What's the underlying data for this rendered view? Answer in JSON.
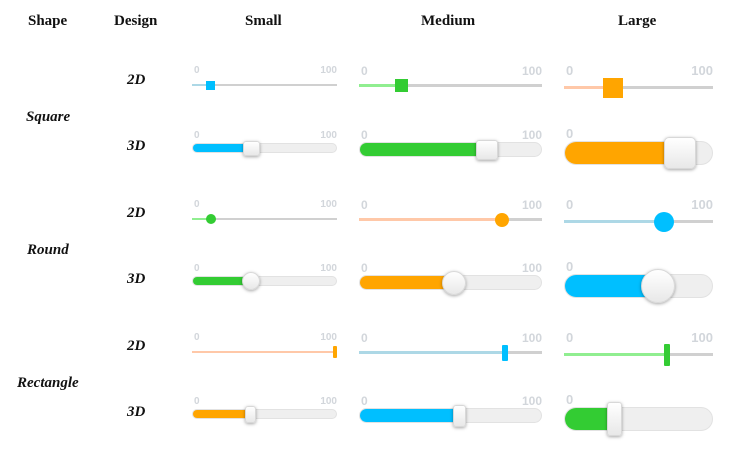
{
  "headers": {
    "shape": "Shape",
    "design": "Design",
    "small": "Small",
    "medium": "Medium",
    "large": "Large"
  },
  "shapes": {
    "square": "Square",
    "round": "Round",
    "rectangle": "Rectangle"
  },
  "designs": {
    "d2": "2D",
    "d3": "3D"
  },
  "range": {
    "min": "0",
    "max": "100"
  },
  "colors": {
    "blue": "#00bfff",
    "green": "#33cc33",
    "orange": "#ffa500",
    "light_green": "#90ee90",
    "peach": "#ffc8a8",
    "light_blue": "#add8e6"
  },
  "sliders": [
    {
      "id": "square-2d-small",
      "shape": "square",
      "design": "2D",
      "size": "small",
      "value": 13,
      "fill": "#add8e6",
      "thumb": "#00bfff"
    },
    {
      "id": "square-2d-medium",
      "shape": "square",
      "design": "2D",
      "size": "medium",
      "value": 23,
      "fill": "#90ee90",
      "thumb": "#33cc33"
    },
    {
      "id": "square-2d-large",
      "shape": "square",
      "design": "2D",
      "size": "large",
      "value": 33,
      "fill": "#ffc8a8",
      "thumb": "#ffa500"
    },
    {
      "id": "square-3d-small",
      "shape": "square",
      "design": "3D",
      "size": "small",
      "value": 41,
      "fill": "#00bfff"
    },
    {
      "id": "square-3d-medium",
      "shape": "square",
      "design": "3D",
      "size": "medium",
      "value": 70,
      "fill": "#33cc33"
    },
    {
      "id": "square-3d-large",
      "shape": "square",
      "design": "3D",
      "size": "large",
      "value": 78,
      "fill": "#ffa500"
    },
    {
      "id": "round-2d-small",
      "shape": "round",
      "design": "2D",
      "size": "small",
      "value": 13,
      "fill": "#90ee90",
      "thumb": "#33cc33"
    },
    {
      "id": "round-2d-medium",
      "shape": "round",
      "design": "2D",
      "size": "medium",
      "value": 78,
      "fill": "#ffc8a8",
      "thumb": "#ffa500"
    },
    {
      "id": "round-2d-large",
      "shape": "round",
      "design": "2D",
      "size": "large",
      "value": 67,
      "fill": "#add8e6",
      "thumb": "#00bfff"
    },
    {
      "id": "round-3d-small",
      "shape": "round",
      "design": "3D",
      "size": "small",
      "value": 41,
      "fill": "#33cc33"
    },
    {
      "id": "round-3d-medium",
      "shape": "round",
      "design": "3D",
      "size": "medium",
      "value": 52,
      "fill": "#ffa500"
    },
    {
      "id": "round-3d-large",
      "shape": "round",
      "design": "3D",
      "size": "large",
      "value": 63,
      "fill": "#00bfff"
    },
    {
      "id": "rect-2d-small",
      "shape": "rectangle",
      "design": "2D",
      "size": "small",
      "value": 100,
      "fill": "#ffc8a8",
      "thumb": "#ffa500"
    },
    {
      "id": "rect-2d-medium",
      "shape": "rectangle",
      "design": "2D",
      "size": "medium",
      "value": 80,
      "fill": "#add8e6",
      "thumb": "#00bfff"
    },
    {
      "id": "rect-2d-large",
      "shape": "rectangle",
      "design": "2D",
      "size": "large",
      "value": 69,
      "fill": "#90ee90",
      "thumb": "#33cc33"
    },
    {
      "id": "rect-3d-small",
      "shape": "rectangle",
      "design": "3D",
      "size": "small",
      "value": 40,
      "fill": "#ffa500"
    },
    {
      "id": "rect-3d-medium",
      "shape": "rectangle",
      "design": "3D",
      "size": "medium",
      "value": 55,
      "fill": "#00bfff"
    },
    {
      "id": "rect-3d-large",
      "shape": "rectangle",
      "design": "3D",
      "size": "large",
      "value": 34,
      "fill": "#33cc33"
    }
  ]
}
